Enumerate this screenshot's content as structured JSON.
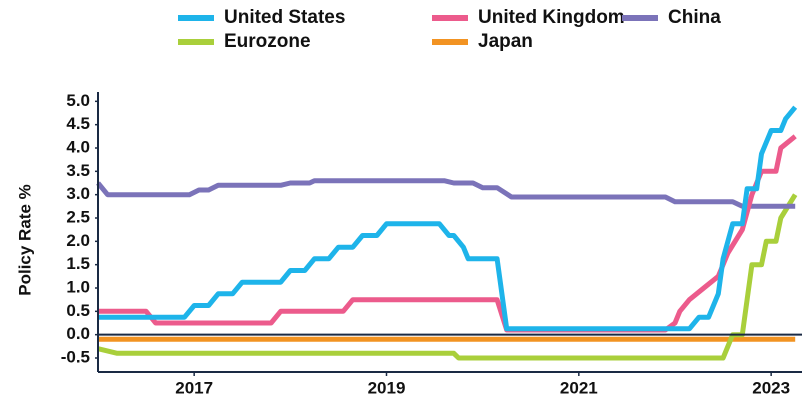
{
  "chart_data": {
    "type": "line",
    "y_label": "Policy Rate %",
    "xlim": [
      2016.0,
      2023.3
    ],
    "xticks": [
      2017,
      2019,
      2021,
      2023
    ],
    "ylim": [
      -0.8,
      5.2
    ],
    "yticks": [
      {
        "value": 5.0,
        "label": "5.0"
      },
      {
        "value": 4.5,
        "label": "4.5"
      },
      {
        "value": 4.0,
        "label": "4.0"
      },
      {
        "value": 3.5,
        "label": "3.5"
      },
      {
        "value": 3.0,
        "label": "3.0"
      },
      {
        "value": 2.5,
        "label": "2.5"
      },
      {
        "value": 2.0,
        "label": "2.0"
      },
      {
        "value": 1.5,
        "label": "1.5"
      },
      {
        "value": 1.0,
        "label": "1.0"
      },
      {
        "value": 0.5,
        "label": "0.5"
      },
      {
        "value": 0.0,
        "label": "0.0"
      },
      {
        "value": -0.5,
        "label": "-0.5"
      }
    ],
    "grid": false,
    "series": [
      {
        "name": "United States",
        "color": "#1eb4ea",
        "x": [
          2016.0,
          2016.9,
          2017.0,
          2017.15,
          2017.25,
          2017.4,
          2017.5,
          2017.9,
          2018.0,
          2018.15,
          2018.25,
          2018.4,
          2018.5,
          2018.65,
          2018.75,
          2018.9,
          2019.0,
          2019.55,
          2019.65,
          2019.7,
          2019.8,
          2019.85,
          2020.15,
          2020.25,
          2022.15,
          2022.25,
          2022.35,
          2022.45,
          2022.5,
          2022.6,
          2022.7,
          2022.75,
          2022.85,
          2022.9,
          2023.0,
          2023.1,
          2023.15,
          2023.25
        ],
        "values": [
          0.375,
          0.375,
          0.625,
          0.625,
          0.875,
          0.875,
          1.125,
          1.125,
          1.375,
          1.375,
          1.625,
          1.625,
          1.875,
          1.875,
          2.125,
          2.125,
          2.375,
          2.375,
          2.125,
          2.125,
          1.875,
          1.625,
          1.625,
          0.125,
          0.125,
          0.375,
          0.375,
          0.875,
          1.625,
          2.375,
          2.375,
          3.125,
          3.125,
          3.875,
          4.375,
          4.375,
          4.625,
          4.875
        ]
      },
      {
        "name": "United Kingdom",
        "color": "#ec5b8c",
        "x": [
          2016.0,
          2016.5,
          2016.6,
          2017.8,
          2017.9,
          2018.55,
          2018.65,
          2020.15,
          2020.25,
          2021.9,
          2022.0,
          2022.05,
          2022.15,
          2022.3,
          2022.45,
          2022.55,
          2022.7,
          2022.8,
          2022.9,
          2023.05,
          2023.1,
          2023.25
        ],
        "values": [
          0.5,
          0.5,
          0.25,
          0.25,
          0.5,
          0.5,
          0.75,
          0.75,
          0.1,
          0.1,
          0.25,
          0.5,
          0.75,
          1.0,
          1.25,
          1.75,
          2.25,
          3.0,
          3.5,
          3.5,
          4.0,
          4.25
        ]
      },
      {
        "name": "China",
        "color": "#7b73b9",
        "x": [
          2016.0,
          2016.1,
          2016.95,
          2017.05,
          2017.15,
          2017.25,
          2017.9,
          2018.0,
          2018.2,
          2018.25,
          2019.6,
          2019.7,
          2019.9,
          2020.0,
          2020.15,
          2020.3,
          2021.9,
          2022.0,
          2022.6,
          2022.7,
          2023.25
        ],
        "values": [
          3.25,
          3.0,
          3.0,
          3.1,
          3.1,
          3.2,
          3.2,
          3.25,
          3.25,
          3.3,
          3.3,
          3.25,
          3.25,
          3.15,
          3.15,
          2.95,
          2.95,
          2.85,
          2.85,
          2.75,
          2.75
        ]
      },
      {
        "name": "Eurozone",
        "color": "#a9cf3b",
        "x": [
          2016.0,
          2016.2,
          2019.7,
          2019.75,
          2022.5,
          2022.6,
          2022.7,
          2022.75,
          2022.8,
          2022.9,
          2022.95,
          2023.05,
          2023.1,
          2023.25
        ],
        "values": [
          -0.3,
          -0.4,
          -0.4,
          -0.5,
          -0.5,
          0.0,
          0.0,
          0.75,
          1.5,
          1.5,
          2.0,
          2.0,
          2.5,
          3.0
        ]
      },
      {
        "name": "Japan",
        "color": "#f29322",
        "x": [
          2016.0,
          2023.25
        ],
        "values": [
          -0.1,
          -0.1
        ]
      }
    ]
  }
}
